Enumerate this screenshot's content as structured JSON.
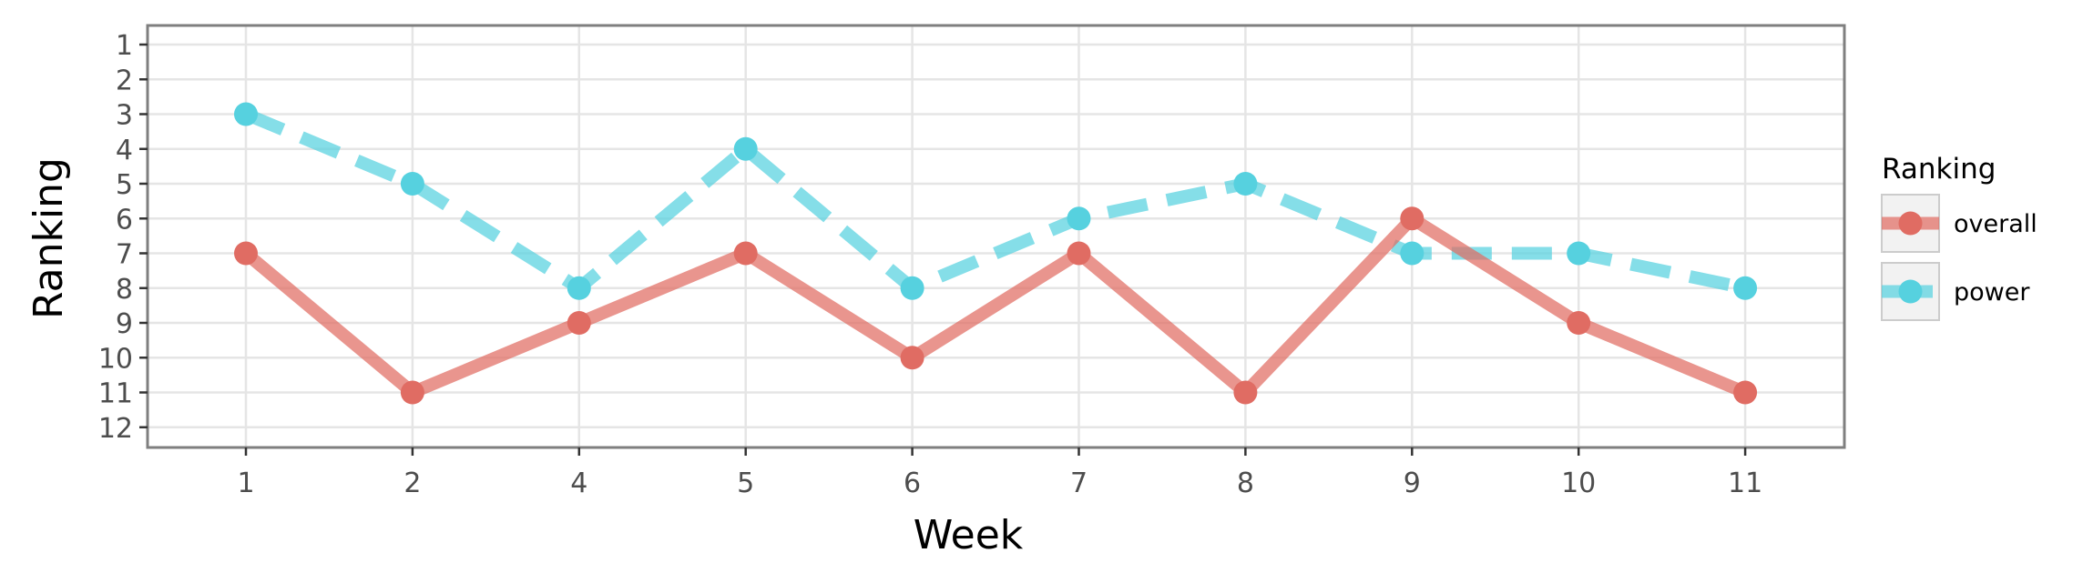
{
  "chart_data": {
    "type": "line",
    "categories": [
      "1",
      "2",
      "4",
      "5",
      "6",
      "7",
      "8",
      "9",
      "10",
      "11"
    ],
    "series": [
      {
        "name": "overall",
        "values": [
          7,
          11,
          9,
          7,
          10,
          7,
          11,
          6,
          9,
          11
        ],
        "color": "#e06c63",
        "linestyle": "solid"
      },
      {
        "name": "power",
        "values": [
          3,
          5,
          8,
          4,
          8,
          6,
          5,
          7,
          7,
          8
        ],
        "color": "#56d1df",
        "linestyle": "dashed"
      }
    ],
    "xlabel": "Week",
    "ylabel": "Ranking",
    "yticks": [
      1,
      2,
      3,
      4,
      5,
      6,
      7,
      8,
      9,
      10,
      11,
      12
    ],
    "ylim": [
      1,
      12
    ],
    "y_reversed": true,
    "grid": true,
    "legend": {
      "title": "Ranking",
      "position": "right"
    }
  }
}
